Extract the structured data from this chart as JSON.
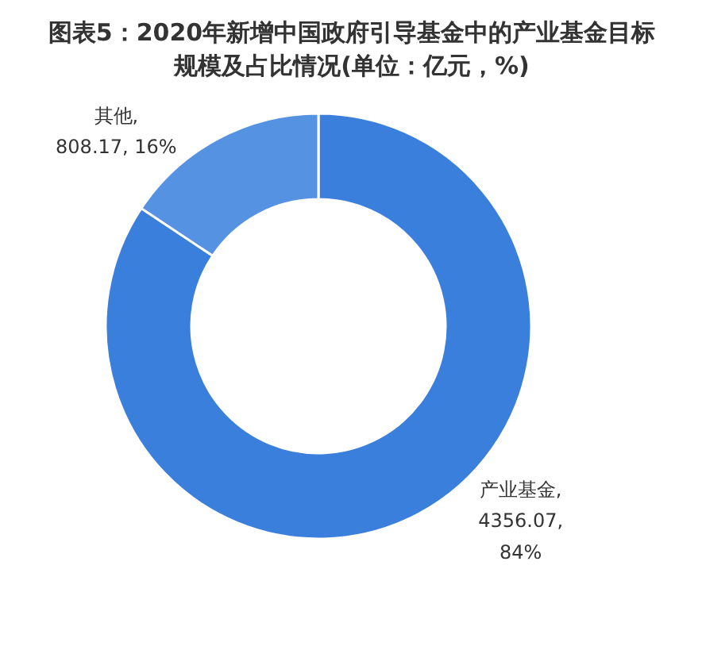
{
  "chart_data": {
    "type": "donut",
    "title": "图表5：2020年新增中国政府引导基金中的产业基金目标规模及占比情况(单位：亿元，%)",
    "categories": [
      "产业基金",
      "其他"
    ],
    "values": [
      4356.07,
      808.17
    ],
    "colors": [
      "#3a7fdc",
      "#5592e2"
    ],
    "value_labels": [
      ",\n4356.07,\n84%",
      ",\n808.17, 16%"
    ]
  }
}
